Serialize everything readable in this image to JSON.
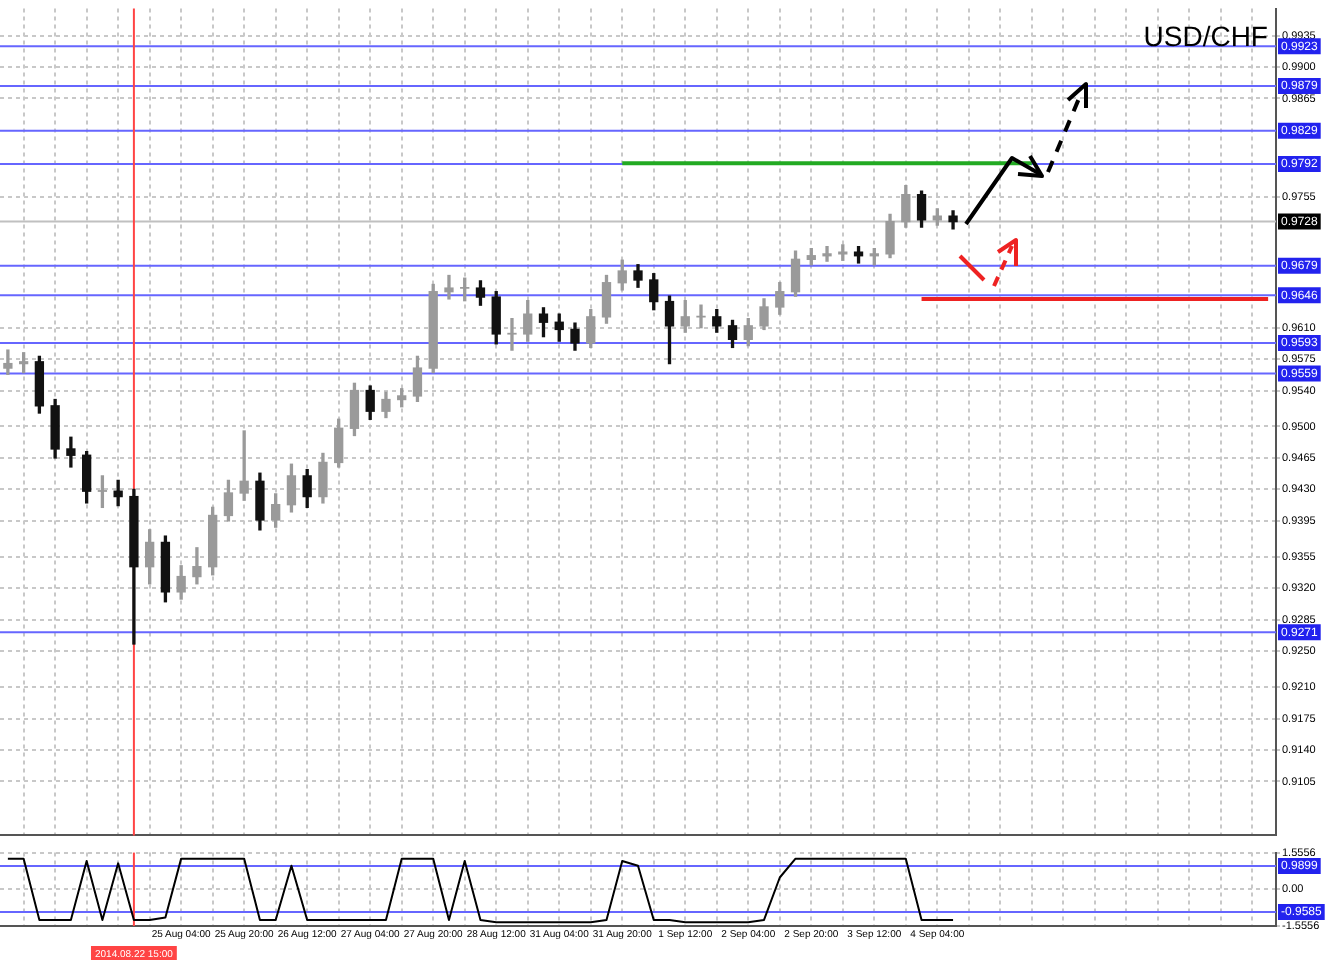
{
  "chart_data": [
    {
      "type": "candlestick",
      "title": "USD/CHF",
      "categories": [
        null,
        null,
        null,
        null,
        null,
        null,
        null,
        null,
        "2014.08.22 15:00",
        null,
        null,
        "25 Aug 04:00",
        null,
        null,
        null,
        "25 Aug 20:00",
        null,
        null,
        null,
        "26 Aug 12:00",
        null,
        null,
        null,
        "27 Aug 04:00",
        null,
        null,
        null,
        "27 Aug 20:00",
        null,
        null,
        null,
        "28 Aug 12:00",
        null,
        null,
        null,
        "31 Aug 04:00",
        null,
        null,
        null,
        "31 Aug 20:00",
        null,
        null,
        null,
        "1 Sep 12:00",
        null,
        null,
        null,
        "2 Sep 04:00",
        null,
        null,
        null,
        "2 Sep 20:00",
        null,
        null,
        null,
        "3 Sep 12:00",
        null,
        null,
        null,
        "4 Sep 04:00",
        null,
        null,
        null,
        null,
        null,
        null,
        null,
        null,
        null,
        null,
        null,
        null,
        null,
        null,
        null,
        null,
        null,
        null,
        null,
        null,
        null
      ],
      "ohlc": [
        [
          0.9565,
          0.9585,
          0.9558,
          0.957
        ],
        [
          0.957,
          0.9582,
          0.956,
          0.9572
        ],
        [
          0.9572,
          0.9578,
          0.9515,
          0.9523
        ],
        [
          0.9523,
          0.953,
          0.9465,
          0.9475
        ],
        [
          0.9475,
          0.9488,
          0.9455,
          0.9468
        ],
        [
          0.9468,
          0.9472,
          0.9415,
          0.9428
        ],
        [
          0.9428,
          0.9445,
          0.941,
          0.9428
        ],
        [
          0.9428,
          0.944,
          0.9412,
          0.9422
        ],
        [
          0.9422,
          0.943,
          0.9258,
          0.9344
        ],
        [
          0.9344,
          0.9385,
          0.9325,
          0.9371
        ],
        [
          0.9371,
          0.9378,
          0.9305,
          0.9316
        ],
        [
          0.9316,
          0.9345,
          0.9308,
          0.9333
        ],
        [
          0.9333,
          0.9365,
          0.9325,
          0.9344
        ],
        [
          0.9344,
          0.941,
          0.9335,
          0.9401
        ],
        [
          0.9401,
          0.944,
          0.9395,
          0.9426
        ],
        [
          0.9426,
          0.9495,
          0.9418,
          0.9439
        ],
        [
          0.9439,
          0.9448,
          0.9385,
          0.9396
        ],
        [
          0.9396,
          0.9425,
          0.9388,
          0.9413
        ],
        [
          0.9413,
          0.9458,
          0.9405,
          0.9445
        ],
        [
          0.9445,
          0.9452,
          0.941,
          0.9422
        ],
        [
          0.9422,
          0.947,
          0.9415,
          0.946
        ],
        [
          0.946,
          0.9508,
          0.9455,
          0.9498
        ],
        [
          0.9498,
          0.9548,
          0.949,
          0.954
        ],
        [
          0.954,
          0.9545,
          0.9508,
          0.9517
        ],
        [
          0.9517,
          0.9538,
          0.951,
          0.953
        ],
        [
          0.953,
          0.9542,
          0.9522,
          0.9534
        ],
        [
          0.9534,
          0.9578,
          0.9528,
          0.9565
        ],
        [
          0.9565,
          0.9658,
          0.956,
          0.965
        ],
        [
          0.965,
          0.9668,
          0.9642,
          0.9654
        ],
        [
          0.9654,
          0.9665,
          0.964,
          0.9654
        ],
        [
          0.9654,
          0.9662,
          0.9635,
          0.9644
        ],
        [
          0.9644,
          0.965,
          0.9592,
          0.9603
        ],
        [
          0.9603,
          0.962,
          0.9585,
          0.9603
        ],
        [
          0.9603,
          0.964,
          0.9595,
          0.9625
        ],
        [
          0.9625,
          0.9632,
          0.96,
          0.9616
        ],
        [
          0.9616,
          0.9625,
          0.9595,
          0.9608
        ],
        [
          0.9608,
          0.9615,
          0.9585,
          0.9593
        ],
        [
          0.9593,
          0.963,
          0.9588,
          0.9622
        ],
        [
          0.9622,
          0.9668,
          0.9615,
          0.966
        ],
        [
          0.966,
          0.9685,
          0.9652,
          0.9673
        ],
        [
          0.9673,
          0.968,
          0.9655,
          0.9663
        ],
        [
          0.9663,
          0.967,
          0.963,
          0.9639
        ],
        [
          0.9639,
          0.9645,
          0.957,
          0.9612
        ],
        [
          0.9612,
          0.964,
          0.9605,
          0.9622
        ],
        [
          0.9622,
          0.9635,
          0.961,
          0.9622
        ],
        [
          0.9622,
          0.963,
          0.9605,
          0.9612
        ],
        [
          0.9612,
          0.9618,
          0.9588,
          0.9597
        ],
        [
          0.9597,
          0.962,
          0.959,
          0.9612
        ],
        [
          0.9612,
          0.9642,
          0.9608,
          0.9633
        ],
        [
          0.9633,
          0.966,
          0.9625,
          0.965
        ],
        [
          0.965,
          0.9695,
          0.9645,
          0.9686
        ],
        [
          0.9686,
          0.9698,
          0.968,
          0.969
        ],
        [
          0.969,
          0.97,
          0.9684,
          0.9692
        ],
        [
          0.9692,
          0.9702,
          0.9685,
          0.9694
        ],
        [
          0.9694,
          0.97,
          0.9682,
          0.969
        ],
        [
          0.969,
          0.9698,
          0.968,
          0.9692
        ],
        [
          0.9692,
          0.9736,
          0.9688,
          0.9728
        ],
        [
          0.9728,
          0.9768,
          0.9722,
          0.9758
        ],
        [
          0.9758,
          0.9762,
          0.9722,
          0.973
        ],
        [
          0.973,
          0.9742,
          0.9724,
          0.9734
        ],
        [
          0.9734,
          0.974,
          0.972,
          0.9728
        ],
        null,
        null,
        null,
        null,
        null,
        null,
        null,
        null,
        null,
        null,
        null,
        null,
        null,
        null,
        null,
        null,
        null,
        null,
        null,
        null
      ],
      "series": [
        {
          "type": "line",
          "color": "#22aa22",
          "values": [
            null,
            null,
            null,
            null,
            null,
            null,
            null,
            null,
            null,
            null,
            null,
            null,
            null,
            null,
            null,
            null,
            null,
            null,
            null,
            null,
            null,
            null,
            null,
            null,
            null,
            null,
            null,
            null,
            null,
            null,
            null,
            null,
            null,
            null,
            null,
            null,
            null,
            null,
            null,
            0.9793,
            0.9793,
            0.9793,
            0.9793,
            0.9793,
            0.9793,
            0.9793,
            0.9793,
            0.9793,
            0.9793,
            0.9793,
            0.9793,
            0.9793,
            0.9793,
            0.9793,
            0.9793,
            0.9793,
            0.9793,
            0.9793,
            0.9793,
            0.9793,
            0.9793,
            0.9793,
            0.9793,
            0.9793,
            0.9793,
            0.9793,
            null,
            null,
            null,
            null,
            null,
            null,
            null,
            null,
            null,
            null,
            null,
            null,
            null,
            null,
            null
          ]
        },
        {
          "type": "line",
          "color": "#ee2222",
          "values": [
            null,
            null,
            null,
            null,
            null,
            null,
            null,
            null,
            null,
            null,
            null,
            null,
            null,
            null,
            null,
            null,
            null,
            null,
            null,
            null,
            null,
            null,
            null,
            null,
            null,
            null,
            null,
            null,
            null,
            null,
            null,
            null,
            null,
            null,
            null,
            null,
            null,
            null,
            null,
            null,
            null,
            null,
            null,
            null,
            null,
            null,
            null,
            null,
            null,
            null,
            null,
            null,
            null,
            null,
            null,
            null,
            null,
            null,
            0.9642,
            0.9642,
            0.9642,
            0.9642,
            0.9642,
            0.9642,
            0.9642,
            0.9642,
            0.9642,
            0.9642,
            0.9642,
            0.9642,
            0.9642,
            0.9642,
            0.9642,
            0.9642,
            0.9642,
            0.9642,
            0.9642,
            0.9642,
            0.9642,
            0.9642,
            0.9642
          ]
        }
      ],
      "ylim": [
        0.9045,
        0.9965
      ],
      "yticks": [
        0.9935,
        {
          "value": 0.99,
          "label": "0.9900"
        },
        0.9865,
        0.9755,
        {
          "value": 0.961,
          "label": "0.9610"
        },
        0.9575,
        {
          "value": 0.954,
          "label": "0.9540"
        },
        {
          "value": 0.95,
          "label": "0.9500"
        },
        0.9465,
        {
          "value": 0.943,
          "label": "0.9430"
        },
        0.9395,
        0.9355,
        {
          "value": 0.932,
          "label": "0.9320"
        },
        0.9285,
        {
          "value": 0.925,
          "label": "0.9250"
        },
        {
          "value": 0.921,
          "label": "0.9210"
        },
        0.9175,
        {
          "value": 0.914,
          "label": "0.9140"
        },
        0.9105
      ],
      "ref_lines": [
        {
          "axis": "y",
          "value": 0.9923,
          "label": "0.9923",
          "color": "#6666ff"
        },
        {
          "axis": "y",
          "value": 0.9879,
          "label": "0.9879",
          "color": "#6666ff"
        },
        {
          "axis": "y",
          "value": 0.9829,
          "label": "0.9829",
          "color": "#6666ff"
        },
        {
          "axis": "y",
          "value": 0.9792,
          "label": "0.9792",
          "color": "#6666ff"
        },
        {
          "axis": "y",
          "value": 0.9728,
          "label": "0.9728",
          "color": "#c0c0c0"
        },
        {
          "axis": "y",
          "value": 0.9679,
          "label": "0.9679",
          "color": "#6666ff"
        },
        {
          "axis": "y",
          "value": 0.9646,
          "label": "0.9646",
          "color": "#6666ff"
        },
        {
          "axis": "y",
          "value": 0.9593,
          "label": "0.9593",
          "color": "#6666ff"
        },
        {
          "axis": "y",
          "value": 0.9559,
          "label": "0.9559",
          "color": "#6666ff"
        },
        {
          "axis": "y",
          "value": 0.9271,
          "label": "0.9271",
          "color": "#6666ff"
        },
        {
          "axis": "x",
          "value": "2014.08.22 15:00",
          "color": "#ff4444"
        }
      ],
      "grid": true,
      "tick_labels": "y"
    },
    {
      "type": "line",
      "categories": [
        null,
        null,
        null,
        null,
        null,
        null,
        null,
        null,
        "2014.08.22 15:00",
        null,
        null,
        "25 Aug 04:00",
        null,
        null,
        null,
        "25 Aug 20:00",
        null,
        null,
        null,
        "26 Aug 12:00",
        null,
        null,
        null,
        "27 Aug 04:00",
        null,
        null,
        null,
        "27 Aug 20:00",
        null,
        null,
        null,
        "28 Aug 12:00",
        null,
        null,
        null,
        "31 Aug 04:00",
        null,
        null,
        null,
        "31 Aug 20:00",
        null,
        null,
        null,
        "1 Sep 12:00",
        null,
        null,
        null,
        "2 Sep 04:00",
        null,
        null,
        null,
        "2 Sep 20:00",
        null,
        null,
        null,
        "3 Sep 12:00",
        null,
        null,
        null,
        "4 Sep 04:00",
        null,
        null,
        null,
        null,
        null,
        null,
        null,
        null,
        null,
        null,
        null,
        null,
        null,
        null,
        null,
        null,
        null,
        null,
        null,
        null,
        null
      ],
      "series": [
        {
          "color": "#000000",
          "values": [
            1.3,
            1.3,
            -1.3,
            -1.3,
            -1.3,
            1.2,
            -1.3,
            1.1,
            -1.3,
            -1.3,
            -1.2,
            1.3,
            1.3,
            1.3,
            1.3,
            1.3,
            -1.3,
            -1.3,
            1.0,
            -1.3,
            -1.3,
            -1.3,
            -1.3,
            -1.3,
            -1.3,
            1.3,
            1.3,
            1.3,
            -1.3,
            1.2,
            -1.3,
            -1.4,
            -1.4,
            -1.4,
            -1.4,
            -1.4,
            -1.4,
            -1.4,
            -1.3,
            1.2,
            1.0,
            -1.3,
            -1.3,
            -1.4,
            -1.4,
            -1.4,
            -1.4,
            -1.4,
            -1.3,
            0.5,
            1.3,
            1.3,
            1.3,
            1.3,
            1.3,
            1.3,
            1.3,
            1.3,
            -1.3,
            -1.3,
            -1.3,
            null,
            null,
            null,
            null,
            null,
            null,
            null,
            null,
            null,
            null,
            null,
            null,
            null,
            null,
            null,
            null,
            null,
            null,
            null,
            null
          ]
        }
      ],
      "ylim": [
        -1.5556,
        1.5556
      ],
      "yticks": [
        1.5556,
        {
          "value": 0,
          "label": "0.00"
        },
        -1.5556
      ],
      "ref_lines": [
        {
          "axis": "y",
          "value": 0.9899,
          "label": "0.9899",
          "color": "#6666ff"
        },
        {
          "axis": "y",
          "value": -0.9585,
          "label": "-0.9585",
          "color": "#6666ff"
        },
        {
          "axis": "x",
          "value": "2014.08.22 15:00",
          "color": "#ff4444"
        }
      ],
      "grid": true
    }
  ]
}
